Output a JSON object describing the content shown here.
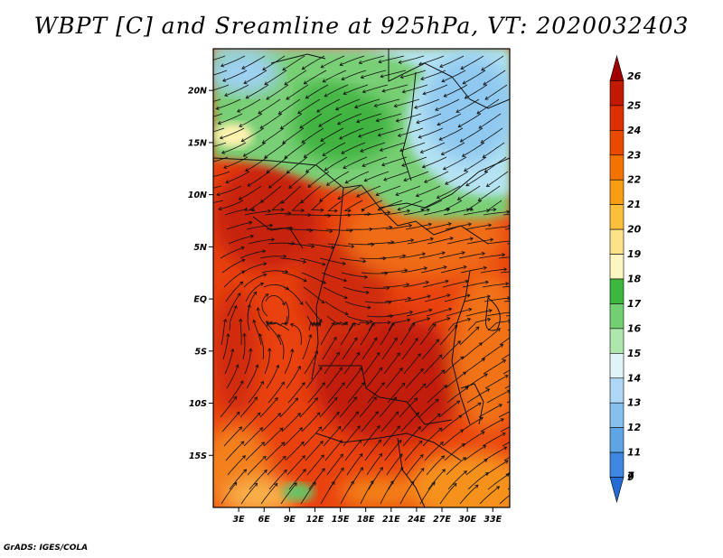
{
  "title": "WBPT [C] and Sreamline at 925hPa, VT: 2020032403",
  "footer": "GrADS: IGES/COLA",
  "map": {
    "lon_labels": [
      "3E",
      "6E",
      "9E",
      "12E",
      "15E",
      "18E",
      "21E",
      "24E",
      "27E",
      "30E",
      "33E"
    ],
    "lat_labels": [
      "20N",
      "15N",
      "10N",
      "5N",
      "EQ",
      "5S",
      "10S",
      "15S"
    ],
    "lon_range": [
      0,
      35
    ],
    "lat_range": [
      -20,
      24
    ]
  },
  "colorbar": {
    "labels": [
      "26",
      "25",
      "24",
      "23",
      "22",
      "21",
      "20",
      "19",
      "18",
      "17",
      "16",
      "15",
      "14",
      "13",
      "12",
      "11",
      "9",
      "7"
    ],
    "colors": [
      "#a00000",
      "#c21a00",
      "#dd3000",
      "#ea4a00",
      "#f47300",
      "#f89c10",
      "#fbbf3c",
      "#fde28a",
      "#fef6c0",
      "#3cb83c",
      "#72d072",
      "#ade7ad",
      "#dff3f8",
      "#aed8f5",
      "#85c0ef",
      "#5ea5e8",
      "#3e86df",
      "#246bd3"
    ]
  }
}
